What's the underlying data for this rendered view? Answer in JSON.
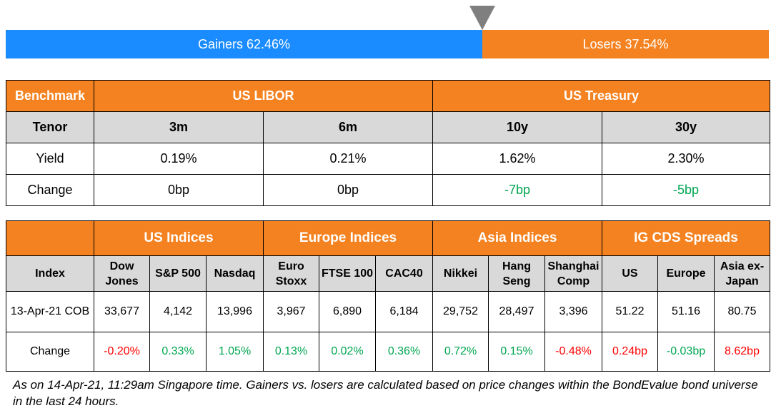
{
  "gainers_losers": {
    "gainers_label": "Gainers 62.46%",
    "losers_label": "Losers 37.54%",
    "gainers_pct": 62.46,
    "losers_pct": 37.54,
    "colors": {
      "gainers": "#1a8cff",
      "losers": "#f58220",
      "marker": "#7f7f7f"
    }
  },
  "benchmark_table": {
    "headers": {
      "benchmark": "Benchmark",
      "libor": "US LIBOR",
      "treasury": "US Treasury"
    },
    "tenor_row": {
      "label": "Tenor",
      "cells": [
        "3m",
        "6m",
        "10y",
        "30y"
      ]
    },
    "yield_row": {
      "label": "Yield",
      "cells": [
        "0.19%",
        "0.21%",
        "1.62%",
        "2.30%"
      ]
    },
    "change_row": {
      "label": "Change",
      "cells": [
        "0bp",
        "0bp",
        "-7bp",
        "-5bp"
      ]
    }
  },
  "indices_table": {
    "groups": {
      "us": "US Indices",
      "europe": "Europe Indices",
      "asia": "Asia Indices",
      "cds": "IG CDS Spreads"
    },
    "index_label": "Index",
    "index_names": [
      [
        "Dow",
        "Jones"
      ],
      [
        "S&P 500"
      ],
      [
        "Nasdaq"
      ],
      [
        "Euro",
        "Stoxx"
      ],
      [
        "FTSE 100"
      ],
      [
        "CAC40"
      ],
      [
        "Nikkei"
      ],
      [
        "Hang",
        "Seng"
      ],
      [
        "Shanghai",
        "Comp"
      ],
      [
        "US"
      ],
      [
        "Europe"
      ],
      [
        "Asia ex-",
        "Japan"
      ]
    ],
    "value_row": {
      "label": "13-Apr-21 COB",
      "cells": [
        "33,677",
        "4,142",
        "13,996",
        "3,967",
        "6,890",
        "6,184",
        "29,752",
        "28,497",
        "3,396",
        "51.22",
        "51.16",
        "80.75"
      ]
    },
    "change_row": {
      "label": "Change",
      "cells": [
        "-0.20%",
        "0.33%",
        "1.05%",
        "0.13%",
        "0.02%",
        "0.36%",
        "0.72%",
        "0.15%",
        "-0.48%",
        "0.24bp",
        "-0.03bp",
        "8.62bp"
      ]
    }
  },
  "footnote": "As on 14-Apr-21, 11:29am Singapore time. Gainers vs. losers are calculated based on price changes within the BondEvalue bond universe in the last 24 hours.",
  "colors": {
    "header_orange": "#f58220",
    "subheader_grey": "#d9d9d9",
    "positive": "#00a651",
    "negative": "#ff0000"
  }
}
